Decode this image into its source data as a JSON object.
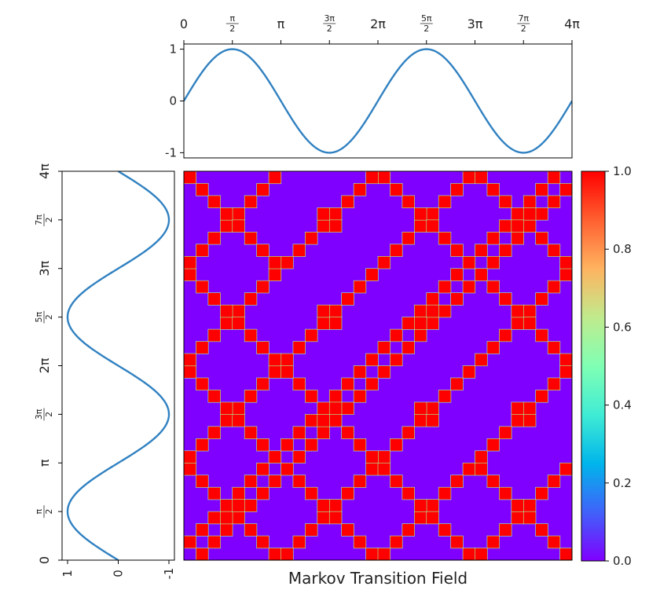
{
  "chart_data": [
    {
      "type": "line",
      "panel": "top-sine",
      "x_ticks": [
        "0",
        "π/2",
        "π",
        "3π/2",
        "2π",
        "5π/2",
        "3π",
        "7π/2",
        "4π"
      ],
      "x_tick_values": [
        0,
        1.5708,
        3.1416,
        4.7124,
        6.2832,
        7.854,
        9.4248,
        10.9956,
        12.5664
      ],
      "y_ticks": [
        "1",
        "0",
        "-1"
      ],
      "y_tick_values": [
        1,
        0,
        -1
      ],
      "xlim": [
        0,
        12.5664
      ],
      "ylim": [
        -1.1,
        1.1
      ],
      "series": [
        {
          "function": "sin(x)",
          "x_range": [
            0,
            12.5664
          ],
          "color": "#3081c1"
        }
      ]
    },
    {
      "type": "line",
      "panel": "left-sine",
      "orientation": "vertical",
      "y_ticks": [
        "0",
        "π/2",
        "π",
        "3π/2",
        "2π",
        "5π/2",
        "3π",
        "7π/2",
        "4π"
      ],
      "y_tick_values": [
        0,
        1.5708,
        3.1416,
        4.7124,
        6.2832,
        7.854,
        9.4248,
        10.9956,
        12.5664
      ],
      "x_ticks": [
        "1",
        "0",
        "-1"
      ],
      "x_tick_values": [
        1,
        0,
        -1
      ],
      "x_inverted": true,
      "series": [
        {
          "function": "sin(t)",
          "t_range": [
            0,
            12.5664
          ],
          "color": "#3081c1"
        }
      ]
    },
    {
      "type": "heatmap",
      "panel": "markov-transition-field",
      "title": "Markov Transition Field",
      "size": 32,
      "cells": [
        [
          0,
          1
        ],
        [
          1,
          0
        ],
        [
          1,
          2
        ],
        [
          2,
          1
        ],
        [
          2,
          3
        ],
        [
          3,
          2
        ],
        [
          3,
          4
        ],
        [
          4,
          3
        ],
        [
          4,
          5
        ],
        [
          5,
          4
        ],
        [
          5,
          6
        ],
        [
          6,
          5
        ],
        [
          6,
          7
        ],
        [
          7,
          6
        ],
        [
          7,
          8
        ],
        [
          8,
          7
        ],
        [
          8,
          9
        ],
        [
          9,
          8
        ],
        [
          9,
          10
        ],
        [
          10,
          9
        ],
        [
          10,
          11
        ],
        [
          11,
          10
        ],
        [
          11,
          12
        ],
        [
          12,
          11
        ],
        [
          12,
          13
        ],
        [
          13,
          12
        ],
        [
          13,
          14
        ],
        [
          14,
          13
        ],
        [
          14,
          15
        ],
        [
          15,
          14
        ],
        [
          15,
          16
        ],
        [
          16,
          15
        ],
        [
          16,
          17
        ],
        [
          17,
          16
        ],
        [
          17,
          18
        ],
        [
          18,
          17
        ],
        [
          18,
          19
        ],
        [
          19,
          18
        ],
        [
          19,
          20
        ],
        [
          20,
          19
        ],
        [
          20,
          21
        ],
        [
          21,
          20
        ],
        [
          21,
          22
        ],
        [
          22,
          21
        ],
        [
          22,
          23
        ],
        [
          23,
          22
        ],
        [
          23,
          24
        ],
        [
          24,
          23
        ],
        [
          24,
          25
        ],
        [
          25,
          24
        ],
        [
          25,
          26
        ],
        [
          26,
          25
        ],
        [
          26,
          27
        ],
        [
          27,
          26
        ],
        [
          27,
          28
        ],
        [
          28,
          27
        ],
        [
          28,
          29
        ],
        [
          29,
          28
        ],
        [
          29,
          30
        ],
        [
          30,
          29
        ],
        [
          30,
          31
        ],
        [
          31,
          30
        ],
        [
          3,
          3
        ],
        [
          3,
          4
        ],
        [
          4,
          3
        ],
        [
          4,
          4
        ],
        [
          19,
          19
        ],
        [
          19,
          20
        ],
        [
          20,
          19
        ],
        [
          20,
          20
        ],
        [
          11,
          11
        ],
        [
          11,
          12
        ],
        [
          12,
          11
        ],
        [
          12,
          12
        ],
        [
          27,
          27
        ],
        [
          27,
          28
        ],
        [
          28,
          27
        ],
        [
          28,
          28
        ],
        [
          0,
          7
        ],
        [
          1,
          6
        ],
        [
          2,
          5
        ],
        [
          3,
          4
        ],
        [
          4,
          3
        ],
        [
          5,
          2
        ],
        [
          6,
          1
        ],
        [
          7,
          0
        ],
        [
          0,
          8
        ],
        [
          1,
          9
        ],
        [
          2,
          10
        ],
        [
          3,
          11
        ],
        [
          4,
          12
        ],
        [
          5,
          13
        ],
        [
          6,
          14
        ],
        [
          7,
          15
        ],
        [
          8,
          16
        ],
        [
          9,
          17
        ],
        [
          10,
          18
        ],
        [
          11,
          19
        ],
        [
          12,
          20
        ],
        [
          13,
          21
        ],
        [
          14,
          22
        ],
        [
          15,
          23
        ],
        [
          16,
          24
        ],
        [
          17,
          25
        ],
        [
          18,
          26
        ],
        [
          19,
          27
        ],
        [
          20,
          28
        ],
        [
          21,
          29
        ],
        [
          22,
          30
        ],
        [
          23,
          31
        ],
        [
          8,
          0
        ],
        [
          9,
          1
        ],
        [
          10,
          2
        ],
        [
          11,
          3
        ],
        [
          12,
          4
        ],
        [
          13,
          5
        ],
        [
          14,
          6
        ],
        [
          15,
          7
        ],
        [
          16,
          8
        ],
        [
          17,
          9
        ],
        [
          18,
          10
        ],
        [
          19,
          11
        ],
        [
          20,
          12
        ],
        [
          21,
          13
        ],
        [
          22,
          14
        ],
        [
          23,
          15
        ],
        [
          24,
          16
        ],
        [
          25,
          17
        ],
        [
          26,
          18
        ],
        [
          27,
          19
        ],
        [
          28,
          20
        ],
        [
          29,
          21
        ],
        [
          30,
          22
        ],
        [
          31,
          23
        ],
        [
          0,
          15
        ],
        [
          1,
          14
        ],
        [
          2,
          13
        ],
        [
          3,
          12
        ],
        [
          4,
          11
        ],
        [
          5,
          10
        ],
        [
          6,
          9
        ],
        [
          7,
          8
        ],
        [
          8,
          7
        ],
        [
          9,
          6
        ],
        [
          10,
          5
        ],
        [
          11,
          4
        ],
        [
          12,
          3
        ],
        [
          13,
          2
        ],
        [
          14,
          1
        ],
        [
          15,
          0
        ],
        [
          16,
          31
        ],
        [
          17,
          30
        ],
        [
          18,
          29
        ],
        [
          19,
          28
        ],
        [
          20,
          27
        ],
        [
          21,
          26
        ],
        [
          22,
          25
        ],
        [
          23,
          24
        ],
        [
          24,
          23
        ],
        [
          25,
          22
        ],
        [
          26,
          21
        ],
        [
          27,
          20
        ],
        [
          28,
          19
        ],
        [
          29,
          18
        ],
        [
          30,
          17
        ],
        [
          31,
          16
        ],
        [
          0,
          16
        ],
        [
          1,
          17
        ],
        [
          2,
          18
        ],
        [
          3,
          19
        ],
        [
          4,
          20
        ],
        [
          5,
          21
        ],
        [
          6,
          22
        ],
        [
          7,
          23
        ],
        [
          8,
          24
        ],
        [
          9,
          25
        ],
        [
          10,
          26
        ],
        [
          11,
          27
        ],
        [
          12,
          28
        ],
        [
          13,
          29
        ],
        [
          14,
          30
        ],
        [
          15,
          31
        ],
        [
          16,
          0
        ],
        [
          17,
          1
        ],
        [
          18,
          2
        ],
        [
          19,
          3
        ],
        [
          20,
          4
        ],
        [
          21,
          5
        ],
        [
          22,
          6
        ],
        [
          23,
          7
        ],
        [
          24,
          8
        ],
        [
          25,
          9
        ],
        [
          26,
          10
        ],
        [
          27,
          11
        ],
        [
          28,
          12
        ],
        [
          29,
          13
        ],
        [
          30,
          14
        ],
        [
          31,
          15
        ],
        [
          0,
          23
        ],
        [
          1,
          22
        ],
        [
          2,
          21
        ],
        [
          3,
          20
        ],
        [
          4,
          19
        ],
        [
          5,
          18
        ],
        [
          6,
          17
        ],
        [
          7,
          16
        ],
        [
          8,
          15
        ],
        [
          9,
          14
        ],
        [
          10,
          13
        ],
        [
          11,
          12
        ],
        [
          12,
          11
        ],
        [
          13,
          10
        ],
        [
          14,
          9
        ],
        [
          15,
          8
        ],
        [
          16,
          7
        ],
        [
          17,
          6
        ],
        [
          18,
          5
        ],
        [
          19,
          4
        ],
        [
          20,
          3
        ],
        [
          21,
          2
        ],
        [
          22,
          1
        ],
        [
          23,
          0
        ],
        [
          24,
          31
        ],
        [
          25,
          30
        ],
        [
          26,
          29
        ],
        [
          27,
          28
        ],
        [
          28,
          27
        ],
        [
          29,
          26
        ],
        [
          30,
          25
        ],
        [
          31,
          24
        ],
        [
          0,
          24
        ],
        [
          1,
          25
        ],
        [
          2,
          26
        ],
        [
          3,
          27
        ],
        [
          4,
          28
        ],
        [
          5,
          29
        ],
        [
          6,
          30
        ],
        [
          7,
          31
        ],
        [
          24,
          0
        ],
        [
          25,
          1
        ],
        [
          26,
          2
        ],
        [
          27,
          3
        ],
        [
          28,
          4
        ],
        [
          29,
          5
        ],
        [
          30,
          6
        ],
        [
          31,
          7
        ],
        [
          0,
          31
        ],
        [
          1,
          30
        ],
        [
          2,
          29
        ],
        [
          3,
          28
        ],
        [
          4,
          27
        ],
        [
          5,
          26
        ],
        [
          6,
          25
        ],
        [
          7,
          24
        ],
        [
          24,
          7
        ],
        [
          25,
          6
        ],
        [
          26,
          5
        ],
        [
          27,
          4
        ],
        [
          28,
          3
        ],
        [
          29,
          2
        ],
        [
          30,
          1
        ],
        [
          31,
          0
        ],
        [
          4,
          27
        ],
        [
          4,
          28
        ],
        [
          3,
          27
        ],
        [
          3,
          28
        ],
        [
          27,
          4
        ],
        [
          28,
          4
        ],
        [
          27,
          3
        ],
        [
          28,
          3
        ],
        [
          11,
          19
        ],
        [
          11,
          20
        ],
        [
          12,
          19
        ],
        [
          12,
          20
        ],
        [
          19,
          11
        ],
        [
          20,
          11
        ],
        [
          19,
          12
        ],
        [
          20,
          12
        ],
        [
          3,
          19
        ],
        [
          3,
          20
        ],
        [
          4,
          19
        ],
        [
          4,
          20
        ],
        [
          19,
          3
        ],
        [
          20,
          3
        ],
        [
          19,
          4
        ],
        [
          20,
          4
        ],
        [
          11,
          27
        ],
        [
          11,
          28
        ],
        [
          12,
          27
        ],
        [
          12,
          28
        ],
        [
          27,
          11
        ],
        [
          28,
          11
        ],
        [
          27,
          12
        ],
        [
          28,
          12
        ],
        [
          3,
          11
        ],
        [
          3,
          12
        ],
        [
          4,
          11
        ],
        [
          4,
          12
        ],
        [
          11,
          3
        ],
        [
          12,
          3
        ],
        [
          11,
          4
        ],
        [
          12,
          4
        ],
        [
          19,
          27
        ],
        [
          19,
          28
        ],
        [
          20,
          27
        ],
        [
          20,
          28
        ],
        [
          27,
          19
        ],
        [
          28,
          19
        ],
        [
          27,
          20
        ],
        [
          28,
          20
        ]
      ],
      "cell_value": 1.0,
      "background_value": 0.0,
      "colormap": "rainbow",
      "clim": [
        0,
        1
      ],
      "colorbar_ticks": [
        "0.0",
        "0.2",
        "0.4",
        "0.6",
        "0.8",
        "1.0"
      ],
      "colorbar_tick_values": [
        0,
        0.2,
        0.4,
        0.6,
        0.8,
        1.0
      ],
      "colors": {
        "low": "#8000ff",
        "high": "#ff0000"
      }
    }
  ]
}
